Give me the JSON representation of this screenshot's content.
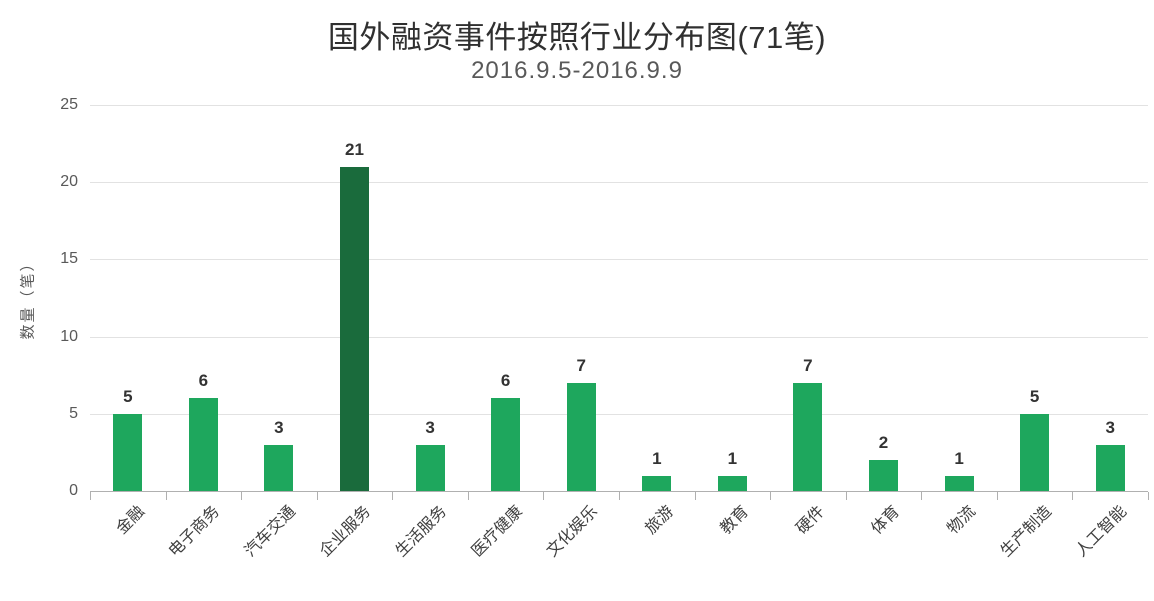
{
  "chart_data": {
    "type": "bar",
    "title": "国外融资事件按照行业分布图(71笔)",
    "subtitle": "2016.9.5-2016.9.9",
    "ylabel": "数量（笔）",
    "xlabel": "",
    "categories": [
      "金融",
      "电子商务",
      "汽车交通",
      "企业服务",
      "生活服务",
      "医疗健康",
      "文化娱乐",
      "旅游",
      "教育",
      "硬件",
      "体育",
      "物流",
      "生产制造",
      "人工智能"
    ],
    "values": [
      5,
      6,
      3,
      21,
      3,
      6,
      7,
      1,
      1,
      7,
      2,
      1,
      5,
      3
    ],
    "total_events": 71,
    "yticks": [
      0,
      5,
      10,
      15,
      20,
      25
    ],
    "ylim": [
      0,
      25
    ],
    "grid": true,
    "legend": false,
    "highlight_index": 3,
    "highlight_category": "企业服务",
    "colors": {
      "bar": "#1ea75d",
      "highlight": "#1a6b3c",
      "grid": "#e2e2e2",
      "axis": "#b0b0b0",
      "title": "#303030",
      "subtitle": "#595959",
      "tick_label": "#595959",
      "axis_label": "#3f3f3f",
      "value_label": "#333333",
      "background": "#ffffff"
    }
  }
}
